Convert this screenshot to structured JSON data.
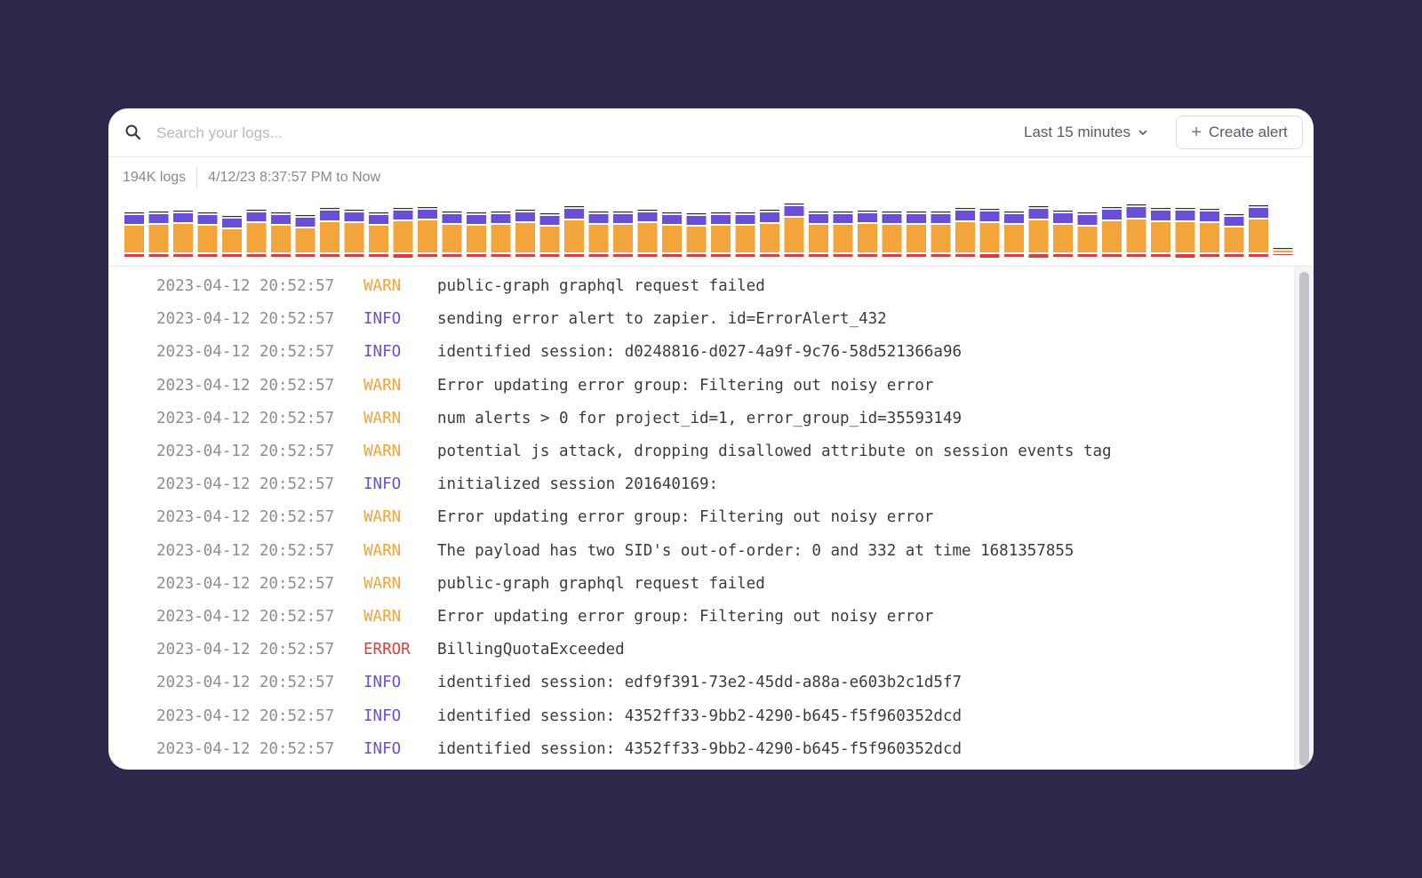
{
  "search": {
    "placeholder": "Search your logs..."
  },
  "time_range": {
    "label": "Last 15 minutes"
  },
  "create_alert": {
    "label": "Create alert"
  },
  "summary": {
    "count": "194K logs",
    "range": "4/12/23 8:37:57 PM to Now"
  },
  "colors": {
    "warn": "#f3a43a",
    "info": "#6b4ed6",
    "error": "#e03c3c",
    "other": "#2b2b33"
  },
  "histogram": {
    "bars": [
      {
        "warn": 30,
        "info": 10,
        "error": 3
      },
      {
        "warn": 31,
        "info": 10,
        "error": 3
      },
      {
        "warn": 32,
        "info": 10,
        "error": 3
      },
      {
        "warn": 30,
        "info": 10,
        "error": 3
      },
      {
        "warn": 26,
        "info": 10,
        "error": 3
      },
      {
        "warn": 33,
        "info": 10,
        "error": 3
      },
      {
        "warn": 30,
        "info": 10,
        "error": 3
      },
      {
        "warn": 27,
        "info": 10,
        "error": 3
      },
      {
        "warn": 34,
        "info": 11,
        "error": 3
      },
      {
        "warn": 33,
        "info": 10,
        "error": 3
      },
      {
        "warn": 30,
        "info": 10,
        "error": 3
      },
      {
        "warn": 35,
        "info": 10,
        "error": 4
      },
      {
        "warn": 36,
        "info": 10,
        "error": 3
      },
      {
        "warn": 31,
        "info": 10,
        "error": 3
      },
      {
        "warn": 30,
        "info": 10,
        "error": 3
      },
      {
        "warn": 31,
        "info": 10,
        "error": 3
      },
      {
        "warn": 33,
        "info": 10,
        "error": 3
      },
      {
        "warn": 29,
        "info": 10,
        "error": 3
      },
      {
        "warn": 36,
        "info": 11,
        "error": 3
      },
      {
        "warn": 31,
        "info": 10,
        "error": 3
      },
      {
        "warn": 31,
        "info": 10,
        "error": 3
      },
      {
        "warn": 33,
        "info": 10,
        "error": 3
      },
      {
        "warn": 30,
        "info": 10,
        "error": 3
      },
      {
        "warn": 29,
        "info": 10,
        "error": 3
      },
      {
        "warn": 30,
        "info": 10,
        "error": 3
      },
      {
        "warn": 30,
        "info": 10,
        "error": 3
      },
      {
        "warn": 32,
        "info": 11,
        "error": 3
      },
      {
        "warn": 39,
        "info": 11,
        "error": 3
      },
      {
        "warn": 31,
        "info": 10,
        "error": 3
      },
      {
        "warn": 31,
        "info": 10,
        "error": 3
      },
      {
        "warn": 32,
        "info": 10,
        "error": 3
      },
      {
        "warn": 31,
        "info": 10,
        "error": 3
      },
      {
        "warn": 31,
        "info": 10,
        "error": 3
      },
      {
        "warn": 31,
        "info": 10,
        "error": 3
      },
      {
        "warn": 34,
        "info": 11,
        "error": 3
      },
      {
        "warn": 33,
        "info": 11,
        "error": 5
      },
      {
        "warn": 31,
        "info": 10,
        "error": 3
      },
      {
        "warn": 36,
        "info": 11,
        "error": 4
      },
      {
        "warn": 31,
        "info": 11,
        "error": 3
      },
      {
        "warn": 29,
        "info": 11,
        "error": 3
      },
      {
        "warn": 35,
        "info": 11,
        "error": 3
      },
      {
        "warn": 37,
        "info": 12,
        "error": 3
      },
      {
        "warn": 34,
        "info": 11,
        "error": 3
      },
      {
        "warn": 34,
        "info": 11,
        "error": 4
      },
      {
        "warn": 33,
        "info": 11,
        "error": 3
      },
      {
        "warn": 28,
        "info": 10,
        "error": 3
      },
      {
        "warn": 37,
        "info": 11,
        "error": 3
      },
      {
        "warn": 2,
        "info": 0,
        "error": 1
      }
    ]
  },
  "logs": [
    {
      "timestamp": "2023-04-12 20:52:57",
      "level": "WARN",
      "message": "public-graph graphql request failed"
    },
    {
      "timestamp": "2023-04-12 20:52:57",
      "level": "INFO",
      "message": "sending error alert to zapier. id=ErrorAlert_432"
    },
    {
      "timestamp": "2023-04-12 20:52:57",
      "level": "INFO",
      "message": "identified session: d0248816-d027-4a9f-9c76-58d521366a96"
    },
    {
      "timestamp": "2023-04-12 20:52:57",
      "level": "WARN",
      "message": "Error updating error group: Filtering out noisy error"
    },
    {
      "timestamp": "2023-04-12 20:52:57",
      "level": "WARN",
      "message": "num alerts > 0 for project_id=1, error_group_id=35593149"
    },
    {
      "timestamp": "2023-04-12 20:52:57",
      "level": "WARN",
      "message": "potential js attack, dropping disallowed attribute on session events tag"
    },
    {
      "timestamp": "2023-04-12 20:52:57",
      "level": "INFO",
      "message": "initialized session 201640169:"
    },
    {
      "timestamp": "2023-04-12 20:52:57",
      "level": "WARN",
      "message": "Error updating error group: Filtering out noisy error"
    },
    {
      "timestamp": "2023-04-12 20:52:57",
      "level": "WARN",
      "message": "The payload has two SID's out-of-order: 0 and 332 at time 1681357855"
    },
    {
      "timestamp": "2023-04-12 20:52:57",
      "level": "WARN",
      "message": "public-graph graphql request failed"
    },
    {
      "timestamp": "2023-04-12 20:52:57",
      "level": "WARN",
      "message": "Error updating error group: Filtering out noisy error"
    },
    {
      "timestamp": "2023-04-12 20:52:57",
      "level": "ERROR",
      "message": "BillingQuotaExceeded"
    },
    {
      "timestamp": "2023-04-12 20:52:57",
      "level": "INFO",
      "message": "identified session: edf9f391-73e2-45dd-a88a-e603b2c1d5f7"
    },
    {
      "timestamp": "2023-04-12 20:52:57",
      "level": "INFO",
      "message": "identified session: 4352ff33-9bb2-4290-b645-f5f960352dcd"
    },
    {
      "timestamp": "2023-04-12 20:52:57",
      "level": "INFO",
      "message": "identified session: 4352ff33-9bb2-4290-b645-f5f960352dcd"
    }
  ]
}
